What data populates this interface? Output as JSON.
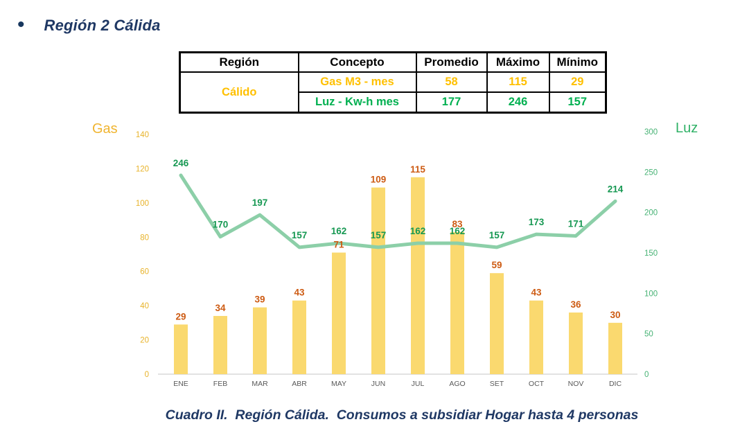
{
  "header": {
    "bullet": "•",
    "title": "Región 2 Cálida"
  },
  "table": {
    "headers": [
      "Región",
      "Concepto",
      "Promedio",
      "Máximo",
      "Mínimo"
    ],
    "region_label": "Cálido",
    "rows": [
      {
        "concepto": "Gas M3 - mes",
        "promedio": "58",
        "maximo": "115",
        "minimo": "29"
      },
      {
        "concepto": "Luz - Kw-h mes",
        "promedio": "177",
        "maximo": "246",
        "minimo": "157"
      }
    ],
    "gas_color": "#FFC000",
    "luz_color": "#00B050"
  },
  "chart_data": {
    "type": "combo-bar-line",
    "categories": [
      "ENE",
      "FEB",
      "MAR",
      "ABR",
      "MAY",
      "JUN",
      "JUL",
      "AGO",
      "SET",
      "OCT",
      "NOV",
      "DIC"
    ],
    "series": [
      {
        "name": "Gas",
        "chart_type": "bar",
        "axis": "left",
        "values": [
          29,
          34,
          39,
          43,
          71,
          109,
          115,
          83,
          59,
          43,
          36,
          30
        ],
        "bar_color": "#FAD96F",
        "label_color": "#CD5B13"
      },
      {
        "name": "Luz",
        "chart_type": "line",
        "axis": "right",
        "values": [
          246,
          170,
          197,
          157,
          162,
          157,
          162,
          162,
          157,
          173,
          171,
          214
        ],
        "line_color": "#8CCFA8",
        "label_color": "#169852"
      }
    ],
    "left_axis": {
      "title": "Gas",
      "min": 0,
      "max": 140,
      "step": 20,
      "tick_color": "#E8B32A"
    },
    "right_axis": {
      "title": "Luz",
      "min": 0,
      "max": 300,
      "step": 50,
      "tick_color": "#46B274"
    },
    "category_color": "#595959",
    "axis_line_color": "#D9D9D9",
    "grid": false,
    "legend": "none"
  },
  "caption": "Cuadro II.  Región Cálida.  Consumos a subsidiar Hogar hasta 4 personas"
}
